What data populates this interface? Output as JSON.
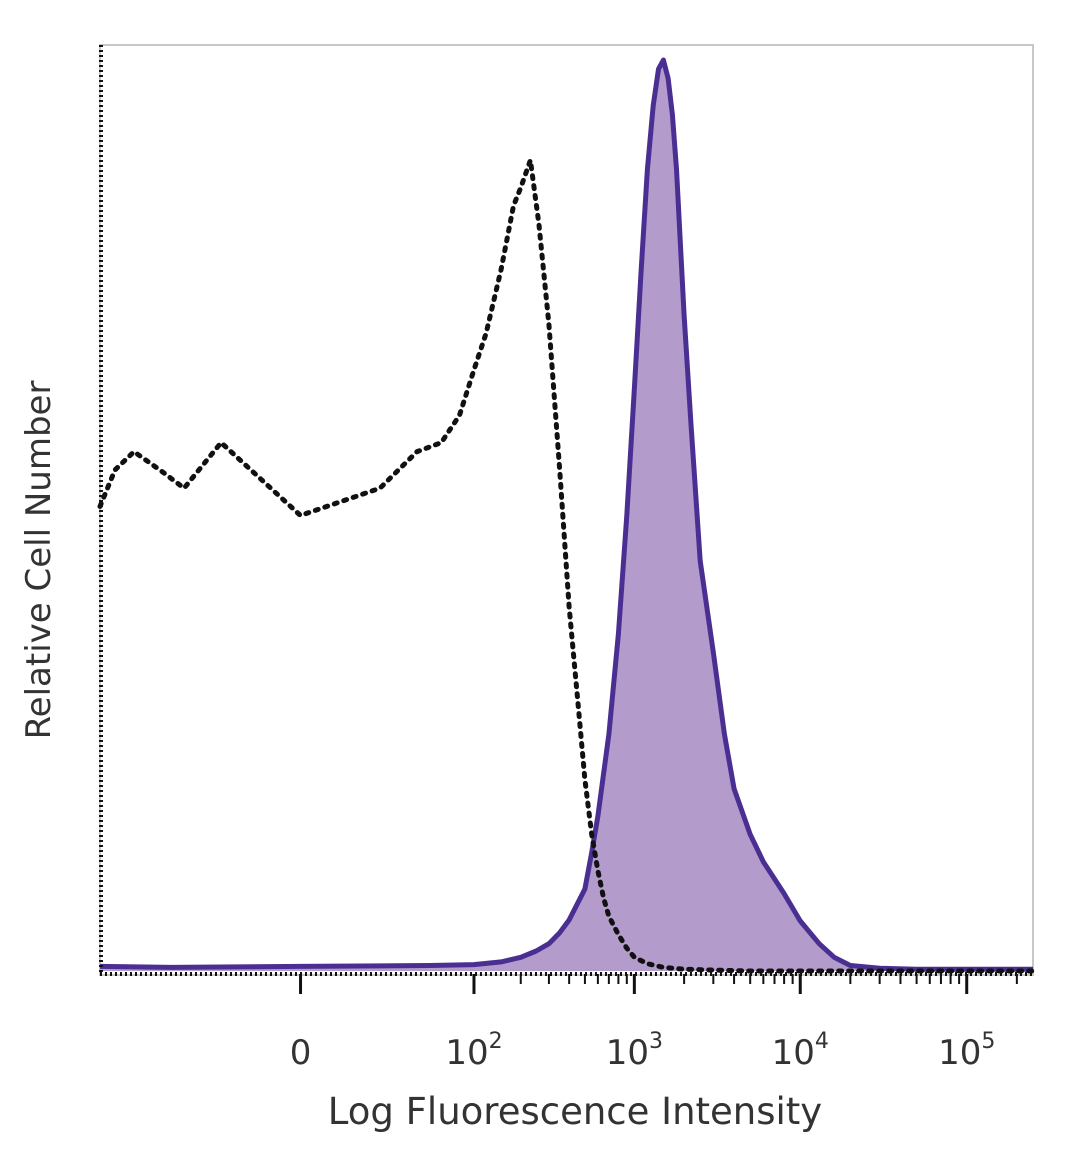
{
  "chart_data": {
    "type": "area",
    "title": "",
    "xlabel": "Log Fluorescence Intensity",
    "ylabel": "Relative Cell Number",
    "x_scale": "biexponential",
    "xlim": [
      -150,
      250000
    ],
    "ylim": [
      0,
      100
    ],
    "grid": false,
    "legend": "none",
    "x_ticks": [
      {
        "value": 0,
        "base": "0",
        "exp": ""
      },
      {
        "value": 100,
        "base": "10",
        "exp": "2"
      },
      {
        "value": 1000,
        "base": "10",
        "exp": "3"
      },
      {
        "value": 10000,
        "base": "10",
        "exp": "4"
      },
      {
        "value": 100000,
        "base": "10",
        "exp": "5"
      }
    ],
    "series": [
      {
        "style": "dotted-outline",
        "color": "#111111",
        "x": [
          -150,
          -120,
          -90,
          -60,
          -40,
          -20,
          0,
          20,
          40,
          60,
          80,
          100,
          120,
          150,
          180,
          200,
          230,
          260,
          300,
          350,
          400,
          450,
          500,
          550,
          600,
          650,
          700,
          800,
          900,
          1000,
          1200,
          1500,
          2000,
          3000,
          5000,
          10000,
          20000,
          50000,
          100000,
          250000
        ],
        "y": [
          51,
          55,
          57,
          55,
          53,
          58,
          50,
          53,
          57,
          58,
          61,
          66,
          70,
          77,
          84,
          86,
          89,
          82,
          71,
          55,
          40,
          30,
          21,
          15,
          11,
          8,
          6,
          4,
          2.5,
          1.5,
          0.8,
          0.4,
          0.2,
          0.1,
          0,
          0,
          0,
          0,
          0,
          0
        ]
      },
      {
        "style": "filled",
        "color": "#4a2f93",
        "fill": "#b39bcb",
        "x": [
          -150,
          -50,
          0,
          50,
          100,
          150,
          200,
          250,
          300,
          350,
          400,
          500,
          550,
          600,
          700,
          800,
          900,
          1000,
          1100,
          1200,
          1300,
          1400,
          1500,
          1600,
          1700,
          1800,
          2000,
          2200,
          2500,
          3000,
          3500,
          4000,
          5000,
          6000,
          8000,
          10000,
          13000,
          16000,
          20000,
          30000,
          50000,
          100000,
          250000
        ],
        "y": [
          0.5,
          0.4,
          0.5,
          0.6,
          0.7,
          1.0,
          1.5,
          2.2,
          3.0,
          4.2,
          5.6,
          9.0,
          13,
          17,
          26,
          37,
          50,
          64,
          77,
          88,
          95,
          99,
          100,
          98,
          94,
          88,
          72,
          60,
          45,
          35,
          26,
          20,
          15,
          12,
          8.5,
          5.5,
          3.0,
          1.5,
          0.6,
          0.3,
          0.2,
          0.2,
          0.2
        ]
      }
    ]
  }
}
